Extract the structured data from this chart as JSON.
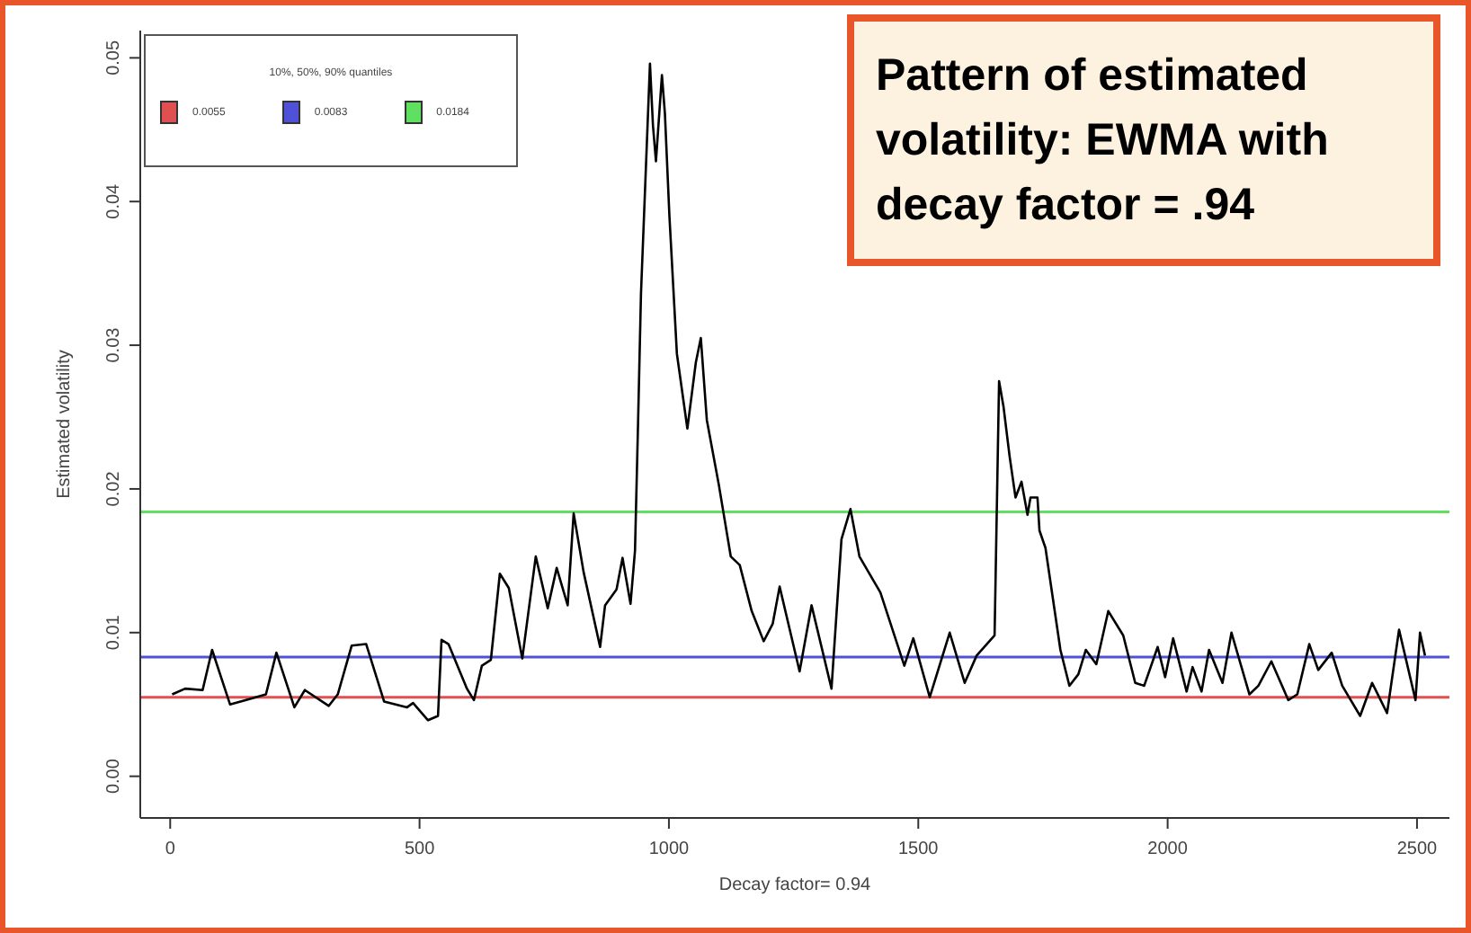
{
  "chart_data": {
    "type": "line",
    "title": "Pattern of estimated volatility: EWMA with decay factor = .94",
    "xlabel": "Decay factor= 0.94",
    "ylabel": "Estimated volatility",
    "legend_title": "10%, 50%, 90% quantiles",
    "legend": "top left",
    "grid": false,
    "marker": "none",
    "line_style": "solid",
    "xlim": [
      -60,
      2565
    ],
    "xticks": [
      0,
      500,
      1000,
      1500,
      2000,
      2500
    ],
    "ylim": [
      -0.0029,
      0.0519
    ],
    "yticks": [
      {
        "value": 0,
        "label": "0.00"
      },
      {
        "value": 0.01,
        "label": "0.01"
      },
      {
        "value": 0.02,
        "label": "0.02"
      },
      {
        "value": 0.03,
        "label": "0.03"
      },
      {
        "value": 0.04,
        "label": "0.04"
      },
      {
        "value": 0.05,
        "label": "0.05"
      }
    ],
    "ref_lines": [
      {
        "axis": "y",
        "value": 0.0055,
        "label": "0.0055",
        "color": "#e05050"
      },
      {
        "axis": "y",
        "value": 0.0083,
        "label": "0.0083",
        "color": "#5050d8"
      },
      {
        "axis": "y",
        "value": 0.0184,
        "label": "0.0184",
        "color": "#60e060"
      }
    ],
    "series": [
      {
        "color": "#000000",
        "x": [
          4,
          30,
          65,
          84,
          120,
          162,
          192,
          213,
          249,
          270,
          318,
          336,
          364,
          393,
          429,
          475,
          487,
          517,
          537,
          544,
          558,
          595,
          609,
          625,
          643,
          661,
          679,
          706,
          733,
          757,
          775,
          797,
          809,
          829,
          862,
          872,
          895,
          907,
          923,
          932,
          938,
          944,
          962,
          968,
          974,
          986,
          992,
          1001,
          1016,
          1037,
          1054,
          1064,
          1076,
          1100,
          1124,
          1142,
          1166,
          1190,
          1208,
          1222,
          1262,
          1286,
          1326,
          1346,
          1364,
          1382,
          1424,
          1472,
          1490,
          1523,
          1563,
          1593,
          1617,
          1653,
          1656,
          1662,
          1671,
          1683,
          1695,
          1707,
          1719,
          1725,
          1739,
          1743,
          1755,
          1785,
          1803,
          1821,
          1836,
          1857,
          1881,
          1911,
          1935,
          1953,
          1980,
          1995,
          2011,
          2038,
          2050,
          2068,
          2083,
          2110,
          2128,
          2164,
          2182,
          2208,
          2242,
          2260,
          2284,
          2302,
          2329,
          2350,
          2386,
          2410,
          2440,
          2464,
          2497,
          2506,
          2516
        ],
        "values": [
          0.0057,
          0.0061,
          0.006,
          0.0088,
          0.005,
          0.0054,
          0.0057,
          0.0086,
          0.0048,
          0.006,
          0.0049,
          0.0057,
          0.0091,
          0.0092,
          0.0052,
          0.0048,
          0.0051,
          0.0039,
          0.0042,
          0.0095,
          0.0092,
          0.0061,
          0.0053,
          0.0077,
          0.0081,
          0.0141,
          0.0131,
          0.0082,
          0.0153,
          0.0117,
          0.0145,
          0.0119,
          0.0183,
          0.0142,
          0.009,
          0.0119,
          0.013,
          0.0152,
          0.012,
          0.0157,
          0.0244,
          0.0336,
          0.0496,
          0.0453,
          0.0428,
          0.0488,
          0.0461,
          0.039,
          0.0294,
          0.0242,
          0.0288,
          0.0305,
          0.0248,
          0.0203,
          0.0153,
          0.0147,
          0.0115,
          0.0094,
          0.0106,
          0.0132,
          0.0073,
          0.0119,
          0.0061,
          0.0165,
          0.0186,
          0.0153,
          0.0128,
          0.0077,
          0.0096,
          0.0055,
          0.01,
          0.0065,
          0.0084,
          0.0098,
          0.0157,
          0.0275,
          0.0257,
          0.0223,
          0.0194,
          0.0205,
          0.0182,
          0.0194,
          0.0194,
          0.0171,
          0.0159,
          0.0088,
          0.0063,
          0.0071,
          0.0088,
          0.0078,
          0.0115,
          0.0098,
          0.0065,
          0.0063,
          0.009,
          0.0069,
          0.0096,
          0.0059,
          0.0076,
          0.0059,
          0.0088,
          0.0065,
          0.01,
          0.0057,
          0.0063,
          0.008,
          0.0053,
          0.0057,
          0.0092,
          0.0074,
          0.0086,
          0.0063,
          0.0042,
          0.0065,
          0.0044,
          0.0102,
          0.0053,
          0.01,
          0.0084
        ]
      }
    ]
  }
}
